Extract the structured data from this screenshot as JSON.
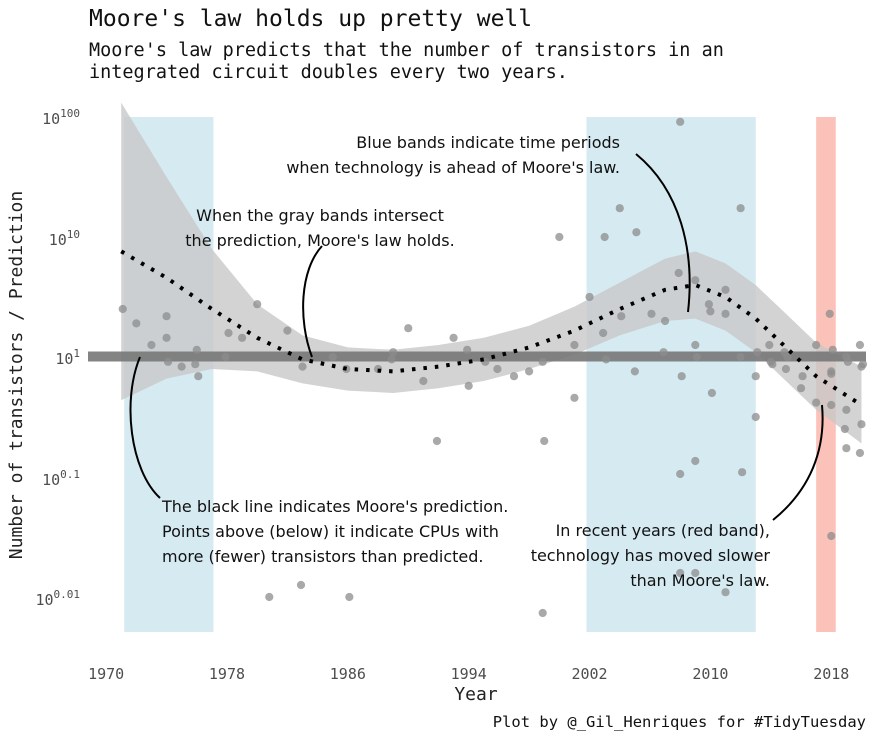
{
  "chart_data": {
    "type": "scatter",
    "title": "Moore's law holds up pretty well",
    "subtitle_lines": [
      "Moore's law predicts that the number of transistors in an",
      "integrated circuit doubles every two years."
    ],
    "xlabel": "Year",
    "ylabel": "Number of transistors / Prediction",
    "caption": "Plot by @_Gil_Henriques for #TidyTuesday",
    "xlim": [
      1968.8,
      2020.3
    ],
    "x_ticks": [
      1970,
      1978,
      1986,
      1994,
      2002,
      2010,
      2018
    ],
    "y_scale": "double-log",
    "y_ticks": [
      {
        "base": "10",
        "exp": "100",
        "value": 1e+100
      },
      {
        "base": "10",
        "exp": "10",
        "value": 10000000000.0
      },
      {
        "base": "10",
        "exp": "1",
        "value": 10
      },
      {
        "base": "10",
        "exp": "0.1",
        "value": 1.2589
      },
      {
        "base": "10",
        "exp": "0.01",
        "value": 1.0233
      }
    ],
    "grid": false,
    "colors": {
      "blue_band": "#d6eaf2",
      "red_band": "#fbc2b9",
      "points": "#8c8c8c",
      "ribbon": "#c8c8c8",
      "reference_line": "#777777",
      "trend": "#000000"
    },
    "reference_line_y": 10,
    "blue_bands": [
      [
        1971.2,
        1977.1
      ],
      [
        2001.8,
        2013.0
      ]
    ],
    "red_bands": [
      [
        2017.0,
        2018.3
      ]
    ],
    "points_ylog10": [
      [
        1971.1,
        1.2
      ],
      [
        1972.0,
        1.14
      ],
      [
        1973.0,
        1.05
      ],
      [
        1974.0,
        1.17
      ],
      [
        1974.0,
        1.08
      ],
      [
        1974.1,
        0.98
      ],
      [
        1975.0,
        0.96
      ],
      [
        1975.9,
        0.97
      ],
      [
        1976.0,
        1.03
      ],
      [
        1976.1,
        0.92
      ],
      [
        1977.9,
        1.0
      ],
      [
        1978.1,
        1.1
      ],
      [
        1979.0,
        1.08
      ],
      [
        1980.0,
        1.22
      ],
      [
        1980.8,
        0.0
      ],
      [
        1982.0,
        1.11
      ],
      [
        1983.0,
        0.96
      ],
      [
        1982.9,
        0.05
      ],
      [
        1985.0,
        1.0
      ],
      [
        1985.9,
        0.95
      ],
      [
        1986.1,
        0.0
      ],
      [
        1987.0,
        -0.55
      ],
      [
        1987.9,
        -0.7
      ],
      [
        1988.0,
        0.95
      ],
      [
        1988.9,
        0.99
      ],
      [
        1989.0,
        1.02
      ],
      [
        1990.0,
        1.12
      ],
      [
        1991.0,
        0.9
      ],
      [
        1991.9,
        0.65
      ],
      [
        1993.0,
        1.08
      ],
      [
        1993.9,
        1.03
      ],
      [
        1994.0,
        0.88
      ],
      [
        1994.1,
        -0.58
      ],
      [
        1995.1,
        0.98
      ],
      [
        1995.9,
        0.95
      ],
      [
        1997.0,
        0.92
      ],
      [
        1998.0,
        0.94
      ],
      [
        1998.9,
        0.98
      ],
      [
        1999.0,
        0.65
      ],
      [
        2000.0,
        1.5
      ],
      [
        2001.0,
        1.05
      ],
      [
        2002.0,
        1.25
      ],
      [
        2002.9,
        1.1
      ],
      [
        2003.0,
        1.5
      ],
      [
        2003.1,
        0.99
      ],
      [
        2004.0,
        1.62
      ],
      [
        2004.1,
        1.17
      ],
      [
        2005.1,
        1.52
      ],
      [
        2005.0,
        0.94
      ],
      [
        2006.1,
        1.18
      ],
      [
        2006.9,
        1.02
      ],
      [
        2007.0,
        1.15
      ],
      [
        2008.0,
        1.98
      ],
      [
        2007.9,
        1.35
      ],
      [
        2008.1,
        0.92
      ],
      [
        2009.0,
        1.32
      ],
      [
        2009.0,
        1.05
      ],
      [
        2009.1,
        1.0
      ],
      [
        2009.9,
        1.22
      ],
      [
        2010.0,
        1.19
      ],
      [
        2010.1,
        0.85
      ],
      [
        2011.0,
        1.28
      ],
      [
        2011.0,
        1.18
      ],
      [
        2012.0,
        1.62
      ],
      [
        2012.0,
        1.0
      ],
      [
        2012.1,
        0.52
      ],
      [
        2013.1,
        1.02
      ],
      [
        2013.0,
        0.92
      ],
      [
        2013.9,
        1.05
      ],
      [
        2014.0,
        0.98
      ],
      [
        2014.1,
        0.97
      ],
      [
        2014.9,
        1.02
      ],
      [
        2015.0,
        0.95
      ],
      [
        2015.1,
        1.0
      ],
      [
        2016.0,
        0.87
      ],
      [
        2016.1,
        0.92
      ],
      [
        2017.0,
        1.05
      ],
      [
        2017.9,
        1.18
      ],
      [
        2018.0,
        0.94
      ],
      [
        2018.0,
        0.93
      ],
      [
        2018.1,
        1.03
      ],
      [
        2019.0,
        1.0
      ],
      [
        2019.0,
        0.78
      ],
      [
        2019.1,
        0.98
      ],
      [
        2019.9,
        1.05
      ],
      [
        2020.0,
        0.96
      ],
      [
        2020.1,
        0.97
      ],
      [
        2001.0,
        0.83
      ],
      [
        2010.1,
        -0.68
      ],
      [
        2011.0,
        0.02
      ],
      [
        2013.0,
        0.75
      ],
      [
        2017.0,
        0.81
      ],
      [
        2018.0,
        0.8
      ],
      [
        2019.0,
        0.62
      ],
      [
        2020.0,
        0.72
      ],
      [
        2019.9,
        0.6
      ],
      [
        2018.9,
        0.7
      ]
    ],
    "points_absolute": [
      [
        1998.9,
        -3.2
      ],
      [
        2008.0,
        -0.2
      ],
      [
        2009.0,
        -0.15
      ],
      [
        2018.0,
        -1.4
      ],
      [
        2008.0,
        0.1
      ],
      [
        2009.0,
        0.1
      ]
    ],
    "trend_ylog10": [
      [
        1971.0,
        1.44
      ],
      [
        1974.0,
        1.33
      ],
      [
        1977.0,
        1.2
      ],
      [
        1980.0,
        1.08
      ],
      [
        1983.0,
        0.99
      ],
      [
        1986.0,
        0.95
      ],
      [
        1989.0,
        0.94
      ],
      [
        1992.0,
        0.96
      ],
      [
        1995.0,
        0.99
      ],
      [
        1998.0,
        1.04
      ],
      [
        2001.0,
        1.11
      ],
      [
        2004.0,
        1.2
      ],
      [
        2007.0,
        1.28
      ],
      [
        2009.0,
        1.3
      ],
      [
        2011.0,
        1.25
      ],
      [
        2013.0,
        1.16
      ],
      [
        2015.0,
        1.04
      ],
      [
        2017.0,
        0.92
      ],
      [
        2020.0,
        0.8
      ]
    ],
    "ribbon_halfwidth_log10": [
      0.62,
      0.42,
      0.25,
      0.14,
      0.1,
      0.09,
      0.09,
      0.09,
      0.09,
      0.09,
      0.1,
      0.11,
      0.13,
      0.14,
      0.14,
      0.14,
      0.14,
      0.14,
      0.16
    ],
    "annotations": [
      {
        "id": "gray-bands-note",
        "lines": [
          "When the gray bands intersect",
          "the prediction, Moore's law holds."
        ]
      },
      {
        "id": "blue-bands-note",
        "lines": [
          "Blue bands indicate time periods",
          "when technology is ahead of Moore's law."
        ]
      },
      {
        "id": "black-line-note",
        "lines": [
          "The black line indicates Moore's prediction.",
          "Points above (below) it indicate CPUs with",
          "more (fewer) transistors than predicted."
        ]
      },
      {
        "id": "red-band-note",
        "lines": [
          "In recent years (red band),",
          "technology has moved slower",
          "than Moore's law."
        ]
      }
    ]
  }
}
